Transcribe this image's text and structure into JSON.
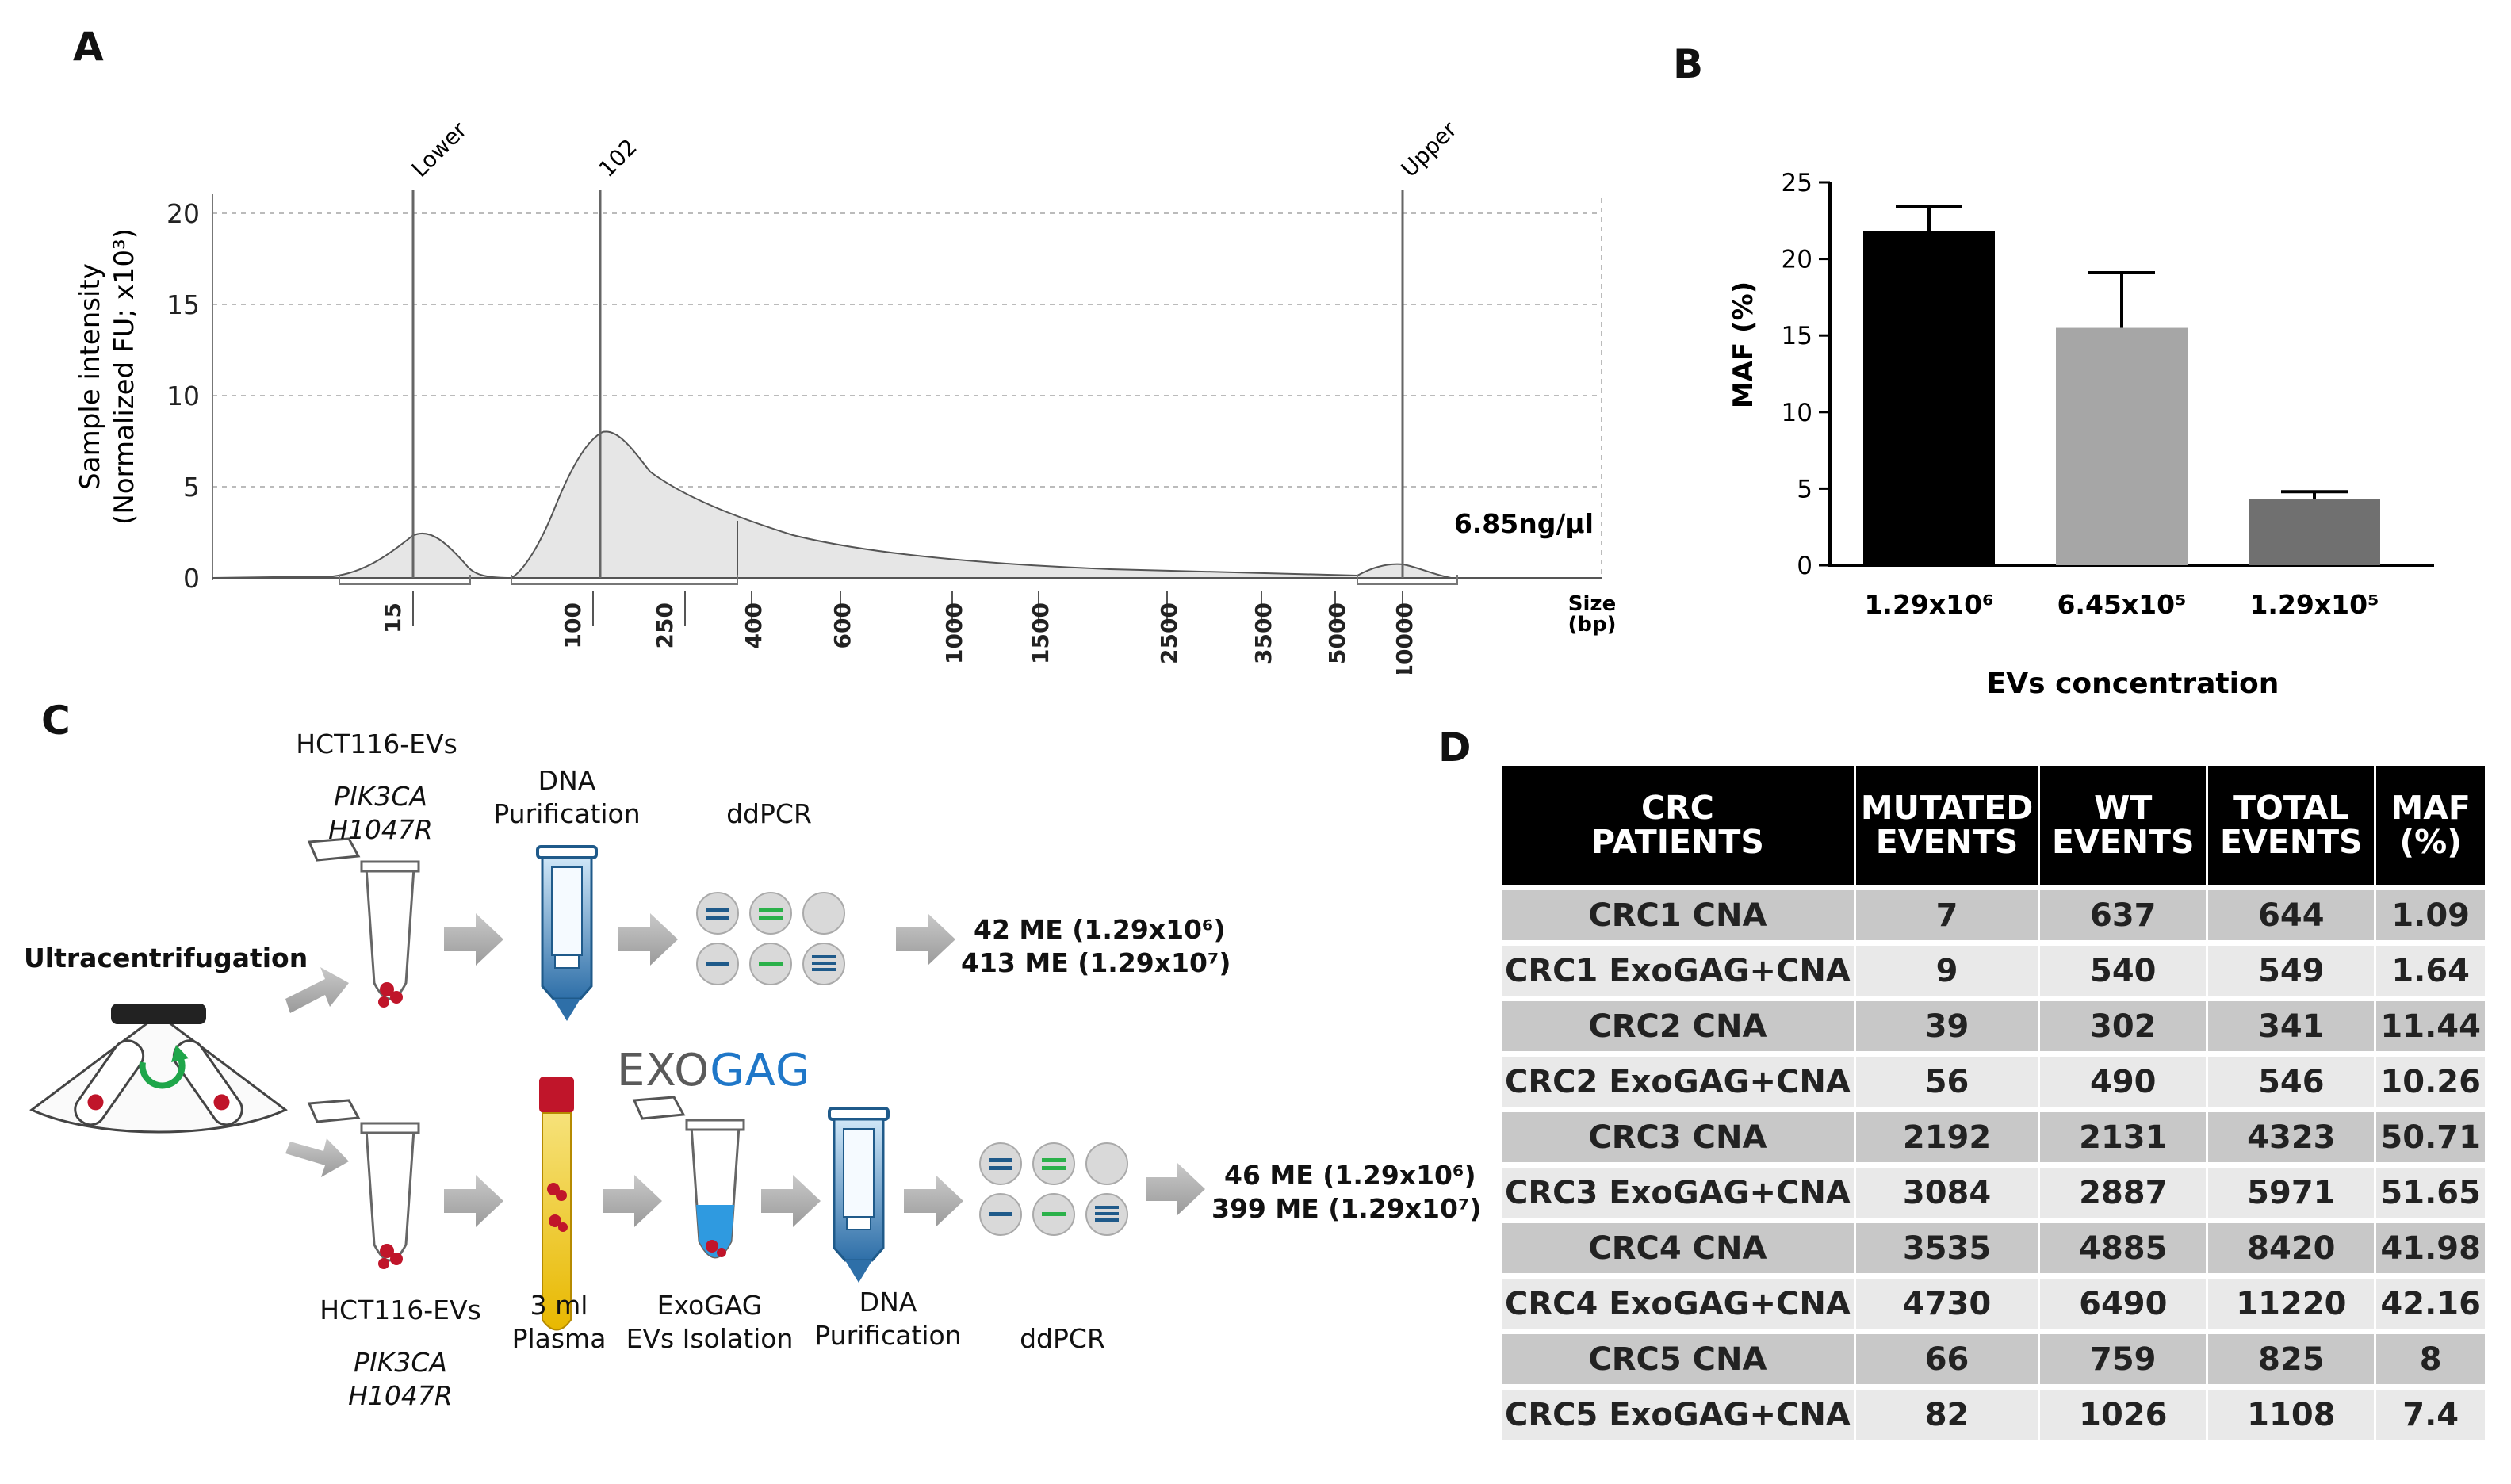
{
  "panels": {
    "a": "A",
    "b": "B",
    "c": "C",
    "d": "D"
  },
  "panelA": {
    "ylabel_line1": "Sample intensity",
    "ylabel_line2": "(Normalized FU; x10³)",
    "yticks": [
      "0",
      "5",
      "10",
      "15",
      "20"
    ],
    "peaks": [
      {
        "label": "Lower"
      },
      {
        "label": "102"
      },
      {
        "label": "Upper"
      }
    ],
    "concentration": "6.85ng/µl",
    "size_ticks": [
      "15",
      "100",
      "250",
      "400",
      "600",
      "1000",
      "1500",
      "2500",
      "3500",
      "5000",
      "10000"
    ],
    "size_label_line1": "Size",
    "size_label_line2": "(bp)"
  },
  "chart_data": {
    "type": "bar",
    "categories": [
      "1.29x10⁶",
      "6.45x10⁵",
      "1.29x10⁵"
    ],
    "values": [
      21.8,
      15.5,
      4.3
    ],
    "errors": [
      1.6,
      3.6,
      0.5
    ],
    "colors": [
      "#000000",
      "#a6a6a6",
      "#707070"
    ],
    "title": "",
    "xlabel": "EVs concentration",
    "ylabel": "MAF (%)",
    "ylim": [
      0,
      25
    ],
    "yticks": [
      0,
      5,
      10,
      15,
      20,
      25
    ]
  },
  "panelC": {
    "top_source": "HCT116-EVs",
    "top_gene_line1": "PIK3CA",
    "top_gene_line2": "H1047R",
    "dna_line1": "DNA",
    "dna_line2": "Purification",
    "ddpcr": "ddPCR",
    "ultracentrifugation": "Ultracentrifugation",
    "top_result_line1": "42 ME (1.29x10⁶)",
    "top_result_line2": "413 ME (1.29x10⁷)",
    "exogag_logo_exo": "EXO",
    "exogag_logo_gag": "GAG",
    "bottom_source": "HCT116-EVs",
    "bottom_gene_line1": "PIK3CA",
    "bottom_gene_line2": "H1047R",
    "plasma_line1": "3 ml",
    "plasma_line2": "Plasma",
    "exogag_line1": "ExoGAG",
    "exogag_line2": "EVs Isolation",
    "dna2_line1": "DNA",
    "dna2_line2": "Purification",
    "ddpcr2": "ddPCR",
    "bottom_result_line1": "46 ME (1.29x10⁶)",
    "bottom_result_line2": "399 ME (1.29x10⁷)"
  },
  "tableD": {
    "headers": [
      {
        "l1": "CRC",
        "l2": "PATIENTS"
      },
      {
        "l1": "MUTATED",
        "l2": "EVENTS"
      },
      {
        "l1": "WT",
        "l2": "EVENTS"
      },
      {
        "l1": "TOTAL",
        "l2": "EVENTS"
      },
      {
        "l1": "MAF",
        "l2": "(%)"
      }
    ],
    "rows": [
      [
        "CRC1 CNA",
        "7",
        "637",
        "644",
        "1.09"
      ],
      [
        "CRC1 ExoGAG+CNA",
        "9",
        "540",
        "549",
        "1.64"
      ],
      [
        "CRC2 CNA",
        "39",
        "302",
        "341",
        "11.44"
      ],
      [
        "CRC2 ExoGAG+CNA",
        "56",
        "490",
        "546",
        "10.26"
      ],
      [
        "CRC3 CNA",
        "2192",
        "2131",
        "4323",
        "50.71"
      ],
      [
        "CRC3 ExoGAG+CNA",
        "3084",
        "2887",
        "5971",
        "51.65"
      ],
      [
        "CRC4 CNA",
        "3535",
        "4885",
        "8420",
        "41.98"
      ],
      [
        "CRC4 ExoGAG+CNA",
        "4730",
        "6490",
        "11220",
        "42.16"
      ],
      [
        "CRC5 CNA",
        "66",
        "759",
        "825",
        "8"
      ],
      [
        "CRC5 ExoGAG+CNA",
        "82",
        "1026",
        "1108",
        "7.4"
      ]
    ]
  }
}
